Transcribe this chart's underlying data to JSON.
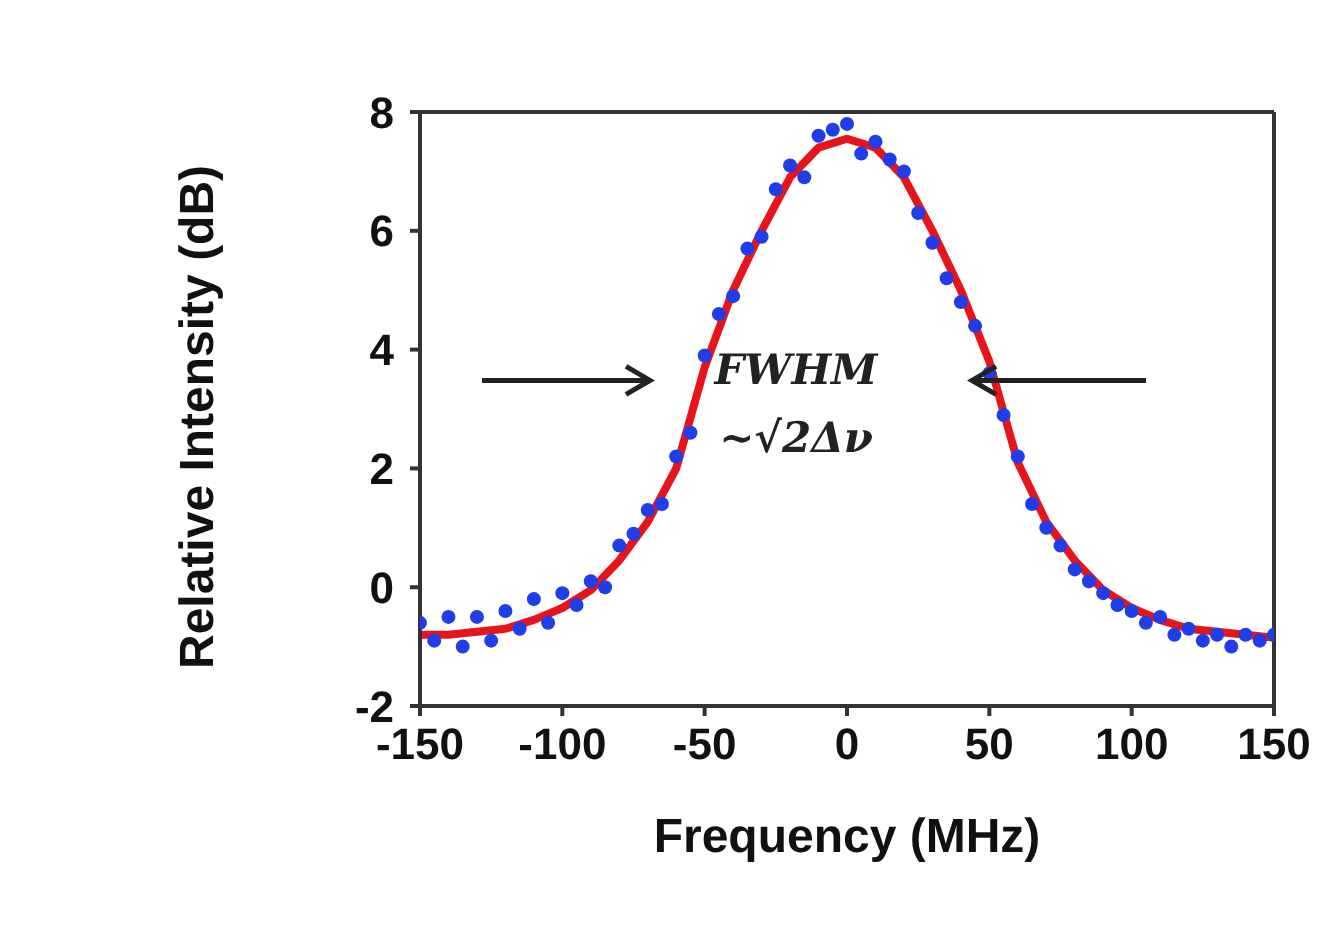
{
  "chart_data": {
    "type": "scatter",
    "xlabel": "Frequency (MHz)",
    "ylabel": "Relative Intensity (dB)",
    "xlim": [
      -150,
      150
    ],
    "xticks": [
      -150,
      -100,
      -50,
      0,
      50,
      100,
      150
    ],
    "ylim": [
      -2,
      8
    ],
    "yticks": [
      -2,
      0,
      2,
      4,
      6,
      8
    ],
    "grid": false,
    "legend": false,
    "annotations": [
      "FWHM",
      "~√2Δν"
    ],
    "series": [
      {
        "color": "#1f3de8",
        "marker": "circle",
        "x": [
          -150,
          -145,
          -140,
          -135,
          -130,
          -125,
          -120,
          -115,
          -110,
          -105,
          -100,
          -95,
          -90,
          -85,
          -80,
          -75,
          -70,
          -65,
          -60,
          -55,
          -50,
          -45,
          -40,
          -35,
          -30,
          -25,
          -20,
          -15,
          -10,
          -5,
          0,
          5,
          10,
          15,
          20,
          25,
          30,
          35,
          40,
          45,
          50,
          55,
          60,
          65,
          70,
          75,
          80,
          85,
          90,
          95,
          100,
          105,
          110,
          115,
          120,
          125,
          130,
          135,
          140,
          145,
          150
        ],
        "values": [
          -0.6,
          -0.9,
          -0.5,
          -1.0,
          -0.5,
          -0.9,
          -0.4,
          -0.7,
          -0.2,
          -0.6,
          -0.1,
          -0.3,
          0.1,
          0.0,
          0.7,
          0.9,
          1.3,
          1.4,
          2.2,
          2.6,
          3.9,
          4.6,
          4.9,
          5.7,
          5.9,
          6.7,
          7.1,
          6.9,
          7.6,
          7.7,
          7.8,
          7.3,
          7.5,
          7.2,
          7.0,
          6.3,
          5.8,
          5.2,
          4.8,
          4.4,
          3.6,
          2.9,
          2.2,
          1.4,
          1.0,
          0.7,
          0.3,
          0.1,
          -0.1,
          -0.3,
          -0.4,
          -0.6,
          -0.5,
          -0.8,
          -0.7,
          -0.9,
          -0.8,
          -1.0,
          -0.8,
          -0.9,
          -0.8
        ]
      },
      {
        "type": "line",
        "color": "#e8141c",
        "marker": "none",
        "line_style": "solid",
        "x": [
          -150,
          -140,
          -130,
          -120,
          -110,
          -100,
          -90,
          -80,
          -70,
          -60,
          -50,
          -40,
          -30,
          -20,
          -10,
          0,
          10,
          20,
          30,
          40,
          50,
          60,
          70,
          80,
          90,
          100,
          110,
          120,
          130,
          140,
          150
        ],
        "values": [
          -0.8,
          -0.8,
          -0.75,
          -0.7,
          -0.55,
          -0.35,
          -0.05,
          0.45,
          1.1,
          2.0,
          3.7,
          5.0,
          6.0,
          6.9,
          7.4,
          7.55,
          7.4,
          6.9,
          6.0,
          5.0,
          3.8,
          2.1,
          1.1,
          0.45,
          -0.05,
          -0.35,
          -0.55,
          -0.7,
          -0.75,
          -0.8,
          -0.85
        ]
      }
    ]
  }
}
